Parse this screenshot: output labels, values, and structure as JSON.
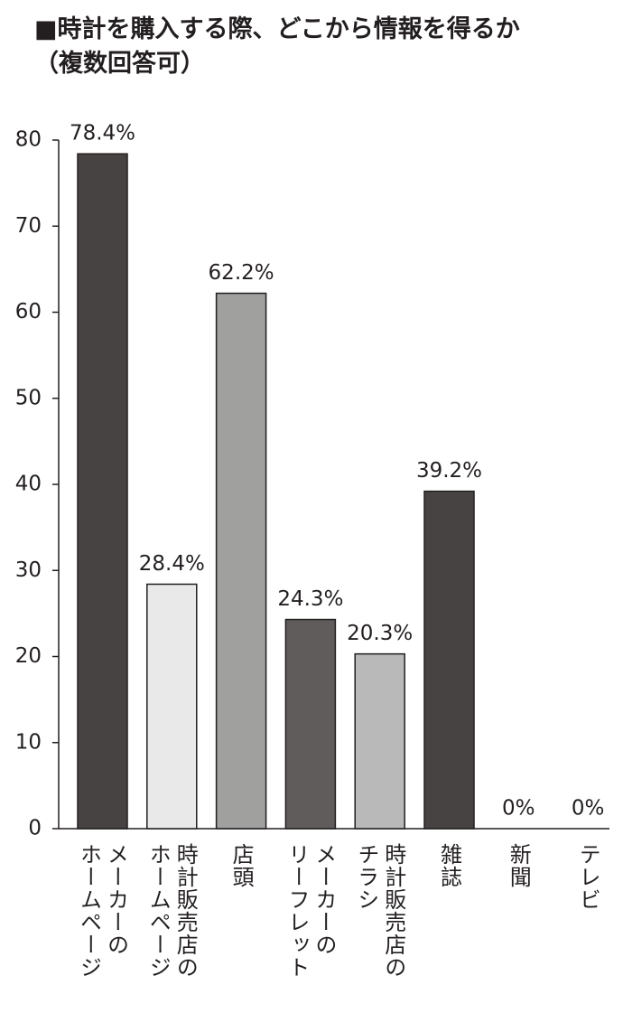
{
  "chart_data": {
    "type": "bar",
    "title": "■時計を購入する際、どこから情報を得るか\n（複数回答可）",
    "categories": [
      "メーカーの\nホームページ",
      "時計販売店の\nホームページ",
      "店頭",
      "メーカーの\nリーフレット",
      "時計販売店の\nチラシ",
      "雑誌",
      "新聞",
      "テレビ"
    ],
    "values": [
      78.4,
      28.4,
      62.2,
      24.3,
      20.3,
      39.2,
      0,
      0
    ],
    "value_labels": [
      "78.4%",
      "28.4%",
      "62.2%",
      "24.3%",
      "20.3%",
      "39.2%",
      "0%",
      "0%"
    ],
    "colors": [
      "#474342",
      "#e8e9e8",
      "#a0a09f",
      "#605c5c",
      "#b9b9b9",
      "#474342",
      "#474342",
      "#474342"
    ],
    "ylim": [
      0,
      80
    ],
    "yticks": [
      0,
      10,
      20,
      30,
      40,
      50,
      60,
      70,
      80
    ],
    "grid": false
  }
}
